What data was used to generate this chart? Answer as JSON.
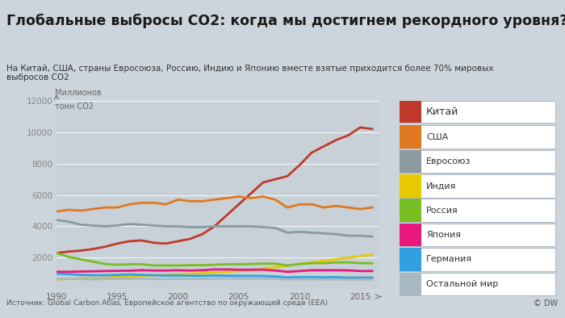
{
  "title": "Глобальные выбросы СО2: когда мы достигнем рекордного уровня?",
  "subtitle": "На Китай, США, страны Евросоюза, Россию, Индию и Японию вместе взятые приходится более 70% мировых\nвыбросов СО2",
  "ylabel_line1": "Миллионов",
  "ylabel_line2": "тонн СО2",
  "source": "Источник: Global Carbon Atlas, Европейское агентство по окружающей среде (EEA)",
  "dw_label": "© DW",
  "background_color": "#cdd5dc",
  "plot_bg_color": "#c8d0d8",
  "title_bg": "#e8eaec",
  "years": [
    1990,
    1991,
    1992,
    1993,
    1994,
    1995,
    1996,
    1997,
    1998,
    1999,
    2000,
    2001,
    2002,
    2003,
    2004,
    2005,
    2006,
    2007,
    2008,
    2009,
    2010,
    2011,
    2012,
    2013,
    2014,
    2015,
    2016
  ],
  "series": {
    "Китай": {
      "color": "#c0392b",
      "data": [
        2300,
        2390,
        2450,
        2550,
        2700,
        2900,
        3050,
        3100,
        2950,
        2900,
        3050,
        3200,
        3500,
        4000,
        4700,
        5400,
        6100,
        6800,
        7000,
        7200,
        7900,
        8700,
        9100,
        9500,
        9800,
        10300,
        10200
      ]
    },
    "США": {
      "color": "#e07820",
      "data": [
        4950,
        5050,
        5000,
        5100,
        5200,
        5200,
        5400,
        5500,
        5500,
        5400,
        5700,
        5600,
        5600,
        5700,
        5800,
        5900,
        5800,
        5900,
        5700,
        5200,
        5400,
        5400,
        5200,
        5300,
        5200,
        5100,
        5200
      ]
    },
    "Евросоюз": {
      "color": "#8a9aa0",
      "data": [
        4400,
        4300,
        4100,
        4050,
        4000,
        4050,
        4150,
        4100,
        4050,
        4000,
        4000,
        3950,
        3950,
        4000,
        4000,
        4000,
        4000,
        3950,
        3900,
        3600,
        3650,
        3600,
        3550,
        3500,
        3400,
        3400,
        3350
      ]
    },
    "Индия": {
      "color": "#e8c800",
      "data": [
        600,
        650,
        680,
        700,
        720,
        760,
        800,
        850,
        870,
        900,
        950,
        980,
        1000,
        1050,
        1100,
        1150,
        1200,
        1300,
        1400,
        1500,
        1600,
        1700,
        1800,
        1900,
        2000,
        2100,
        2200
      ]
    },
    "Россия": {
      "color": "#78be20",
      "data": [
        2300,
        2050,
        1900,
        1750,
        1600,
        1550,
        1580,
        1580,
        1500,
        1500,
        1500,
        1520,
        1520,
        1550,
        1580,
        1580,
        1600,
        1620,
        1620,
        1500,
        1600,
        1650,
        1650,
        1700,
        1700,
        1650,
        1650
      ]
    },
    "Япония": {
      "color": "#e8187c",
      "data": [
        1100,
        1100,
        1120,
        1130,
        1150,
        1160,
        1170,
        1200,
        1180,
        1180,
        1200,
        1180,
        1200,
        1250,
        1250,
        1230,
        1230,
        1240,
        1180,
        1100,
        1150,
        1200,
        1200,
        1200,
        1190,
        1150,
        1150
      ]
    },
    "Германия": {
      "color": "#30a0e0",
      "data": [
        980,
        950,
        900,
        880,
        880,
        900,
        930,
        900,
        880,
        860,
        860,
        850,
        840,
        860,
        850,
        840,
        840,
        830,
        800,
        740,
        760,
        760,
        750,
        760,
        720,
        730,
        730
      ]
    },
    "Остальной мир": {
      "color": "#a8b8c0",
      "data": [
        650,
        650,
        640,
        630,
        640,
        650,
        660,
        660,
        640,
        640,
        650,
        650,
        650,
        660,
        670,
        670,
        670,
        670,
        660,
        620,
        630,
        630,
        620,
        620,
        610,
        610,
        610
      ]
    }
  },
  "ylim": [
    0,
    12000
  ],
  "yticks": [
    2000,
    4000,
    6000,
    8000,
    10000,
    12000
  ],
  "xlim": [
    1990,
    2016.5
  ],
  "xticks": [
    1990,
    1995,
    2000,
    2005,
    2010,
    2015
  ],
  "legend_order": [
    "Китай",
    "США",
    "Евросоюз",
    "Индия",
    "Россия",
    "Япония",
    "Германия",
    "Остальной мир"
  ]
}
